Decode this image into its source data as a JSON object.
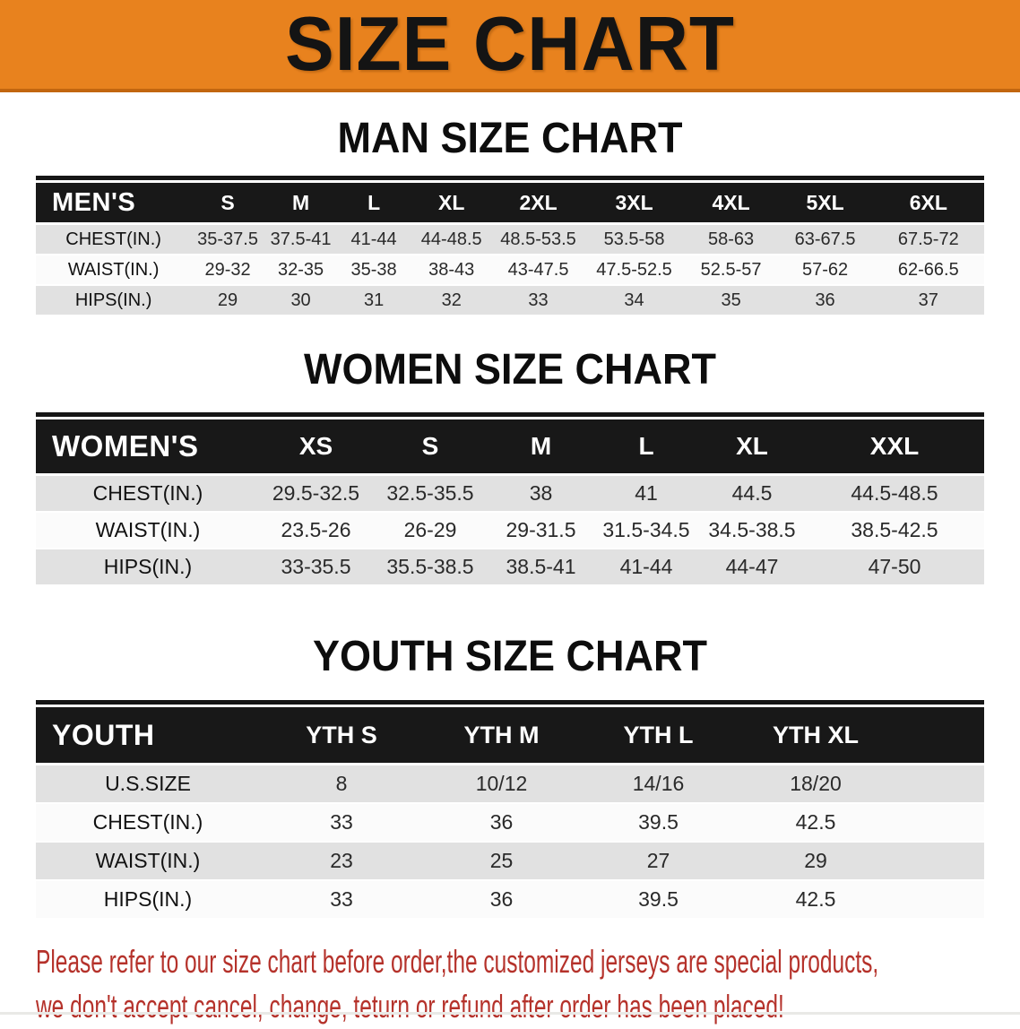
{
  "banner": {
    "title": "SIZE CHART",
    "bg_color": "#E8821E",
    "border_color": "#C2660F"
  },
  "sections": [
    {
      "id": "men",
      "heading": "MAN SIZE CHART",
      "table": {
        "header": [
          "MEN'S",
          "S",
          "M",
          "L",
          "XL",
          "2XL",
          "3XL",
          "4XL",
          "5XL",
          "6XL"
        ],
        "rows": [
          {
            "label": "CHEST(IN.)",
            "values": [
              "35-37.5",
              "37.5-41",
              "41-44",
              "44-48.5",
              "48.5-53.5",
              "53.5-58",
              "58-63",
              "63-67.5",
              "67.5-72"
            ]
          },
          {
            "label": "WAIST(IN.)",
            "values": [
              "29-32",
              "32-35",
              "35-38",
              "38-43",
              "43-47.5",
              "47.5-52.5",
              "52.5-57",
              "57-62",
              "62-66.5"
            ]
          },
          {
            "label": "HIPS(IN.)",
            "values": [
              "29",
              "30",
              "31",
              "32",
              "33",
              "34",
              "35",
              "36",
              "37"
            ]
          }
        ]
      }
    },
    {
      "id": "women",
      "heading": "WOMEN SIZE CHART",
      "table": {
        "header": [
          "WOMEN'S",
          "XS",
          "S",
          "M",
          "L",
          "XL",
          "XXL"
        ],
        "rows": [
          {
            "label": "CHEST(IN.)",
            "values": [
              "29.5-32.5",
              "32.5-35.5",
              "38",
              "41",
              "44.5",
              "44.5-48.5"
            ]
          },
          {
            "label": "WAIST(IN.)",
            "values": [
              "23.5-26",
              "26-29",
              "29-31.5",
              "31.5-34.5",
              "34.5-38.5",
              "38.5-42.5"
            ]
          },
          {
            "label": "HIPS(IN.)",
            "values": [
              "33-35.5",
              "35.5-38.5",
              "38.5-41",
              "41-44",
              "44-47",
              "47-50"
            ]
          }
        ]
      }
    },
    {
      "id": "youth",
      "heading": "YOUTH SIZE CHART",
      "table": {
        "header": [
          "YOUTH",
          "YTH S",
          "YTH M",
          "YTH L",
          "YTH XL"
        ],
        "rows": [
          {
            "label": "U.S.SIZE",
            "values": [
              "8",
              "10/12",
              "14/16",
              "18/20"
            ]
          },
          {
            "label": "CHEST(IN.)",
            "values": [
              "33",
              "36",
              "39.5",
              "42.5"
            ]
          },
          {
            "label": "WAIST(IN.)",
            "values": [
              "23",
              "25",
              "27",
              "29"
            ]
          },
          {
            "label": "HIPS(IN.)",
            "values": [
              "33",
              "36",
              "39.5",
              "42.5"
            ]
          }
        ]
      }
    }
  ],
  "footer": {
    "line1": "Please refer to our size chart before order,the customized jerseys are special products,",
    "line2": "we don't accept cancel, change, teturn or refund after order has been placed!",
    "text_color": "#B5322B"
  }
}
